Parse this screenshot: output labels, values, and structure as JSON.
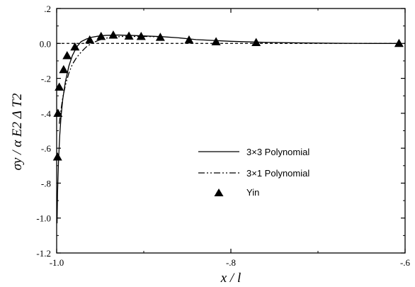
{
  "chart_data": {
    "type": "line",
    "title": "",
    "xlabel": "x / l",
    "ylabel": "σy / α E2 Δ T2",
    "xlim": [
      -1.0,
      -0.6
    ],
    "ylim": [
      -1.2,
      0.2
    ],
    "x_ticks": [
      -1.0,
      -0.8,
      -0.6
    ],
    "x_tick_labels": [
      "-1.0",
      "-.8",
      "-.6"
    ],
    "y_ticks": [
      0.2,
      0.0,
      -0.2,
      -0.4,
      -0.6,
      -0.8,
      -1.0,
      -1.2
    ],
    "y_tick_labels": [
      ".2",
      "0.0",
      "-.2",
      "-.4",
      "-.6",
      "-.8",
      "-1.0",
      "-1.2"
    ],
    "reference_line": {
      "y": 0.0,
      "style": "dashed"
    },
    "grid": false,
    "legend_position": "center-right",
    "series": [
      {
        "name": "3×3 Polynomial",
        "style": "solid",
        "x": [
          -0.9995,
          -0.999,
          -0.998,
          -0.9965,
          -0.995,
          -0.993,
          -0.99,
          -0.986,
          -0.982,
          -0.977,
          -0.972,
          -0.966,
          -0.96,
          -0.952,
          -0.944,
          -0.93,
          -0.915,
          -0.9,
          -0.88,
          -0.86,
          -0.84,
          -0.8,
          -0.76,
          -0.72,
          -0.68,
          -0.64,
          -0.61
        ],
        "y": [
          -1.03,
          -0.86,
          -0.69,
          -0.53,
          -0.42,
          -0.32,
          -0.22,
          -0.13,
          -0.07,
          -0.02,
          0.01,
          0.025,
          0.035,
          0.042,
          0.046,
          0.048,
          0.046,
          0.043,
          0.039,
          0.032,
          0.022,
          0.012,
          0.006,
          0.003,
          0.001,
          0.0,
          0.0
        ]
      },
      {
        "name": "3×1 Polynomial",
        "style": "dash-dot",
        "x": [
          -0.997,
          -0.995,
          -0.993,
          -0.99,
          -0.986,
          -0.982,
          -0.977,
          -0.972,
          -0.966,
          -0.96,
          -0.952,
          -0.944,
          -0.935,
          -0.925,
          -0.91,
          -0.9,
          -0.88
        ],
        "y": [
          -0.46,
          -0.38,
          -0.31,
          -0.24,
          -0.17,
          -0.12,
          -0.08,
          -0.05,
          -0.02,
          0.0,
          0.018,
          0.03,
          0.036,
          0.04,
          0.04,
          0.04,
          0.038
        ]
      },
      {
        "name": "Yin",
        "style": "markers",
        "marker": "filled-triangle",
        "x": [
          -0.999,
          -0.9985,
          -0.997,
          -0.992,
          -0.988,
          -0.979,
          -0.962,
          -0.949,
          -0.935,
          -0.917,
          -0.903,
          -0.881,
          -0.848,
          -0.817,
          -0.771,
          -0.607
        ],
        "y": [
          -0.65,
          -0.4,
          -0.25,
          -0.15,
          -0.07,
          -0.02,
          0.02,
          0.04,
          0.048,
          0.042,
          0.04,
          0.035,
          0.02,
          0.01,
          0.005,
          0.0
        ]
      }
    ]
  }
}
